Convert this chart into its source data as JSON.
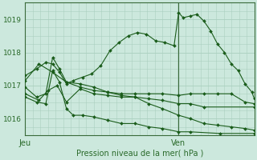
{
  "bg_color": "#cce8dd",
  "grid_color": "#aacfbf",
  "line_color": "#1a5c1a",
  "axis_color": "#3a6a3a",
  "text_color": "#2a6a2a",
  "xlabel": "Pression niveau de la mer( hPa )",
  "xtick_labels": [
    "Jeu",
    "Ven"
  ],
  "xtick_positions": [
    0.0,
    0.67
  ],
  "ylim": [
    1015.5,
    1019.5
  ],
  "xlim": [
    0.0,
    1.0
  ],
  "yticks": [
    1016,
    1017,
    1018,
    1019
  ],
  "vline_x": 0.67,
  "series": [
    {
      "x": [
        0.0,
        0.06,
        0.12,
        0.18,
        0.24,
        0.3,
        0.36,
        0.42,
        0.48,
        0.54,
        0.6,
        0.67,
        0.72,
        0.78,
        0.84,
        0.9,
        0.96,
        1.0
      ],
      "y": [
        1017.15,
        1017.65,
        1017.4,
        1017.1,
        1016.95,
        1016.85,
        1016.8,
        1016.75,
        1016.75,
        1016.75,
        1016.75,
        1016.7,
        1016.75,
        1016.75,
        1016.75,
        1016.75,
        1016.5,
        1016.45
      ]
    },
    {
      "x": [
        0.0,
        0.06,
        0.1,
        0.14,
        0.18,
        0.24,
        0.3,
        0.36,
        0.42,
        0.48,
        0.54,
        0.6,
        0.67,
        0.72,
        0.78,
        0.84,
        0.9,
        0.96,
        1.0
      ],
      "y": [
        1016.75,
        1016.55,
        1016.85,
        1017.0,
        1016.5,
        1016.9,
        1016.75,
        1016.7,
        1016.65,
        1016.65,
        1016.45,
        1016.3,
        1016.1,
        1016.0,
        1015.85,
        1015.8,
        1015.75,
        1015.7,
        1015.65
      ]
    },
    {
      "x": [
        0.0,
        0.05,
        0.09,
        0.12,
        0.15,
        0.18,
        0.24,
        0.3,
        0.36,
        0.42,
        0.48,
        0.54,
        0.6,
        0.67,
        0.72,
        0.78,
        1.0
      ],
      "y": [
        1016.95,
        1016.65,
        1016.75,
        1017.85,
        1017.5,
        1017.1,
        1017.05,
        1016.95,
        1016.8,
        1016.7,
        1016.65,
        1016.6,
        1016.55,
        1016.45,
        1016.45,
        1016.35,
        1016.35
      ]
    },
    {
      "x": [
        0.0,
        0.05,
        0.09,
        0.12,
        0.15,
        0.18,
        0.21,
        0.25,
        0.3,
        0.36,
        0.42,
        0.48,
        0.54,
        0.6,
        0.67,
        0.72,
        0.85,
        1.0
      ],
      "y": [
        1016.65,
        1016.5,
        1016.45,
        1017.45,
        1017.1,
        1016.3,
        1016.1,
        1016.1,
        1016.05,
        1015.95,
        1015.85,
        1015.85,
        1015.75,
        1015.7,
        1015.6,
        1015.6,
        1015.55,
        1015.55
      ]
    },
    {
      "x": [
        0.0,
        0.05,
        0.09,
        0.12,
        0.15,
        0.18,
        0.21,
        0.25,
        0.29,
        0.33,
        0.37,
        0.41,
        0.45,
        0.49,
        0.53,
        0.57,
        0.61,
        0.65,
        0.67,
        0.69,
        0.72,
        0.75,
        0.78,
        0.81,
        0.84,
        0.87,
        0.9,
        0.93,
        0.96,
        0.99,
        1.0
      ],
      "y": [
        1017.3,
        1017.5,
        1017.7,
        1017.65,
        1017.4,
        1017.05,
        1017.15,
        1017.25,
        1017.35,
        1017.6,
        1018.05,
        1018.3,
        1018.5,
        1018.6,
        1018.55,
        1018.35,
        1018.3,
        1018.2,
        1019.2,
        1019.05,
        1019.1,
        1019.15,
        1018.95,
        1018.65,
        1018.25,
        1018.0,
        1017.65,
        1017.45,
        1017.05,
        1016.8,
        1016.6
      ]
    }
  ]
}
